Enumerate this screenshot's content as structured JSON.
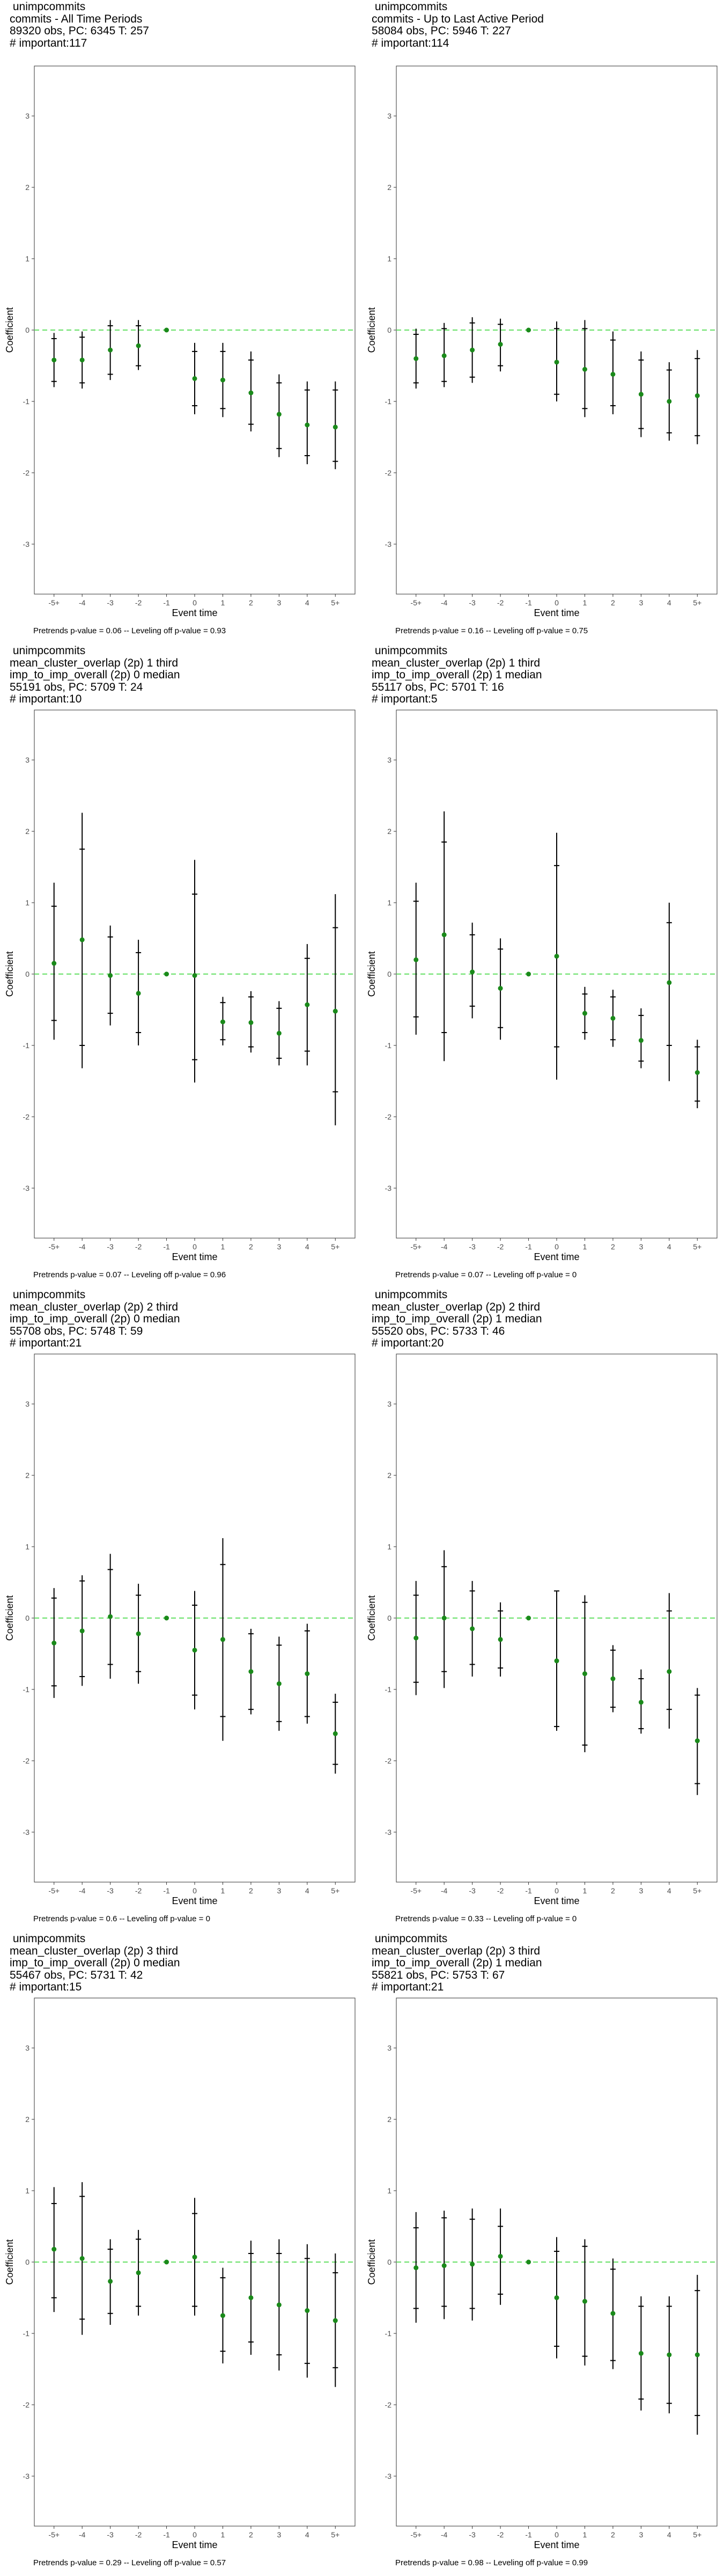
{
  "chart_data": [
    {
      "type": "scatter",
      "title_lines": [
        " unimpcommits",
        "commits - All Time Periods",
        "89320 obs, PC: 6345 T: 257",
        "# important:117"
      ],
      "xlabel": "Event time",
      "ylabel": "Coefficient",
      "categories": [
        "-5+",
        "-4",
        "-3",
        "-2",
        "-1",
        "0",
        "1",
        "2",
        "3",
        "4",
        "5+"
      ],
      "ylim": [
        -3.7,
        3.7
      ],
      "yticks": [
        -3,
        -2,
        -1,
        0,
        1,
        2,
        3
      ],
      "estimate": [
        -0.42,
        -0.42,
        -0.28,
        -0.22,
        0,
        -0.68,
        -0.7,
        -0.88,
        -1.18,
        -1.33,
        -1.36
      ],
      "ci95_low": [
        -0.8,
        -0.82,
        -0.7,
        -0.56,
        0,
        -1.18,
        -1.22,
        -1.42,
        -1.78,
        -1.88,
        -1.95
      ],
      "ci95_high": [
        -0.04,
        -0.02,
        0.14,
        0.14,
        0,
        -0.18,
        -0.18,
        -0.3,
        -0.62,
        -0.72,
        -0.72
      ],
      "ci90_low": [
        -0.72,
        -0.74,
        -0.62,
        -0.5,
        0,
        -1.06,
        -1.1,
        -1.32,
        -1.66,
        -1.76,
        -1.84
      ],
      "ci90_high": [
        -0.12,
        -0.1,
        0.06,
        0.06,
        0,
        -0.3,
        -0.3,
        -0.42,
        -0.74,
        -0.84,
        -0.84
      ],
      "reference_line": 0,
      "footnote": "Pretrends p-value = 0.06 -- Leveling off p-value = 0.93"
    },
    {
      "type": "scatter",
      "title_lines": [
        " unimpcommits",
        "commits - Up to Last Active Period",
        "58084 obs, PC: 5946 T: 227",
        "# important:114"
      ],
      "xlabel": "Event time",
      "ylabel": "Coefficient",
      "categories": [
        "-5+",
        "-4",
        "-3",
        "-2",
        "-1",
        "0",
        "1",
        "2",
        "3",
        "4",
        "5+"
      ],
      "ylim": [
        -3.7,
        3.7
      ],
      "yticks": [
        -3,
        -2,
        -1,
        0,
        1,
        2,
        3
      ],
      "estimate": [
        -0.4,
        -0.36,
        -0.28,
        -0.2,
        0,
        -0.45,
        -0.55,
        -0.62,
        -0.9,
        -1.0,
        -0.92
      ],
      "ci95_low": [
        -0.82,
        -0.8,
        -0.74,
        -0.58,
        0,
        -1.0,
        -1.22,
        -1.18,
        -1.5,
        -1.55,
        -1.6
      ],
      "ci95_high": [
        0.02,
        0.1,
        0.18,
        0.16,
        0,
        0.12,
        0.14,
        -0.02,
        -0.3,
        -0.45,
        -0.28
      ],
      "ci90_low": [
        -0.74,
        -0.72,
        -0.66,
        -0.5,
        0,
        -0.9,
        -1.1,
        -1.06,
        -1.38,
        -1.44,
        -1.48
      ],
      "ci90_high": [
        -0.06,
        0.02,
        0.1,
        0.08,
        0,
        0.02,
        0.02,
        -0.14,
        -0.42,
        -0.56,
        -0.4
      ],
      "reference_line": 0,
      "footnote": "Pretrends p-value = 0.16 -- Leveling off p-value = 0.75"
    },
    {
      "type": "scatter",
      "title_lines": [
        " unimpcommits",
        "mean_cluster_overlap (2p) 1 third",
        "imp_to_imp_overall (2p) 0 median",
        "55191 obs, PC: 5709 T: 24",
        "# important:10"
      ],
      "xlabel": "Event time",
      "ylabel": "Coefficient",
      "categories": [
        "-5+",
        "-4",
        "-3",
        "-2",
        "-1",
        "0",
        "1",
        "2",
        "3",
        "4",
        "5+"
      ],
      "ylim": [
        -3.7,
        3.7
      ],
      "yticks": [
        -3,
        -2,
        -1,
        0,
        1,
        2,
        3
      ],
      "estimate": [
        0.15,
        0.48,
        -0.02,
        -0.27,
        0,
        -0.02,
        -0.67,
        -0.68,
        -0.83,
        -0.43,
        -0.52
      ],
      "ci95_low": [
        -0.92,
        -1.32,
        -0.72,
        -1.0,
        0,
        -1.52,
        -1.0,
        -1.1,
        -1.28,
        -1.28,
        -2.12
      ],
      "ci95_high": [
        1.28,
        2.26,
        0.68,
        0.48,
        0,
        1.6,
        -0.32,
        -0.24,
        -0.38,
        0.42,
        1.12
      ],
      "ci90_low": [
        -0.65,
        -1.0,
        -0.55,
        -0.82,
        0,
        -1.2,
        -0.92,
        -1.02,
        -1.18,
        -1.08,
        -1.65
      ],
      "ci90_high": [
        0.95,
        1.75,
        0.52,
        0.3,
        0,
        1.12,
        -0.4,
        -0.32,
        -0.48,
        0.22,
        0.65
      ],
      "reference_line": 0,
      "footnote": "Pretrends p-value = 0.07 -- Leveling off p-value = 0.96"
    },
    {
      "type": "scatter",
      "title_lines": [
        " unimpcommits",
        "mean_cluster_overlap (2p) 1 third",
        "imp_to_imp_overall (2p) 1 median",
        "55117 obs, PC: 5701 T: 16",
        "# important:5"
      ],
      "xlabel": "Event time",
      "ylabel": "Coefficient",
      "categories": [
        "-5+",
        "-4",
        "-3",
        "-2",
        "-1",
        "0",
        "1",
        "2",
        "3",
        "4",
        "5+"
      ],
      "ylim": [
        -3.7,
        3.7
      ],
      "yticks": [
        -3,
        -2,
        -1,
        0,
        1,
        2,
        3
      ],
      "estimate": [
        0.2,
        0.55,
        0.03,
        -0.2,
        0,
        0.25,
        -0.55,
        -0.62,
        -0.93,
        -0.12,
        -1.38
      ],
      "ci95_low": [
        -0.85,
        -1.22,
        -0.62,
        -0.92,
        0,
        -1.48,
        -0.92,
        -1.02,
        -1.32,
        -1.5,
        -1.88
      ],
      "ci95_high": [
        1.28,
        2.28,
        0.72,
        0.5,
        0,
        1.98,
        -0.18,
        -0.22,
        -0.48,
        1.0,
        -0.92
      ],
      "ci90_low": [
        -0.6,
        -0.82,
        -0.45,
        -0.75,
        0,
        -1.02,
        -0.82,
        -0.92,
        -1.22,
        -1.0,
        -1.78
      ],
      "ci90_high": [
        1.02,
        1.85,
        0.55,
        0.35,
        0,
        1.52,
        -0.28,
        -0.32,
        -0.58,
        0.72,
        -1.02
      ],
      "reference_line": 0,
      "footnote": "Pretrends p-value = 0.07 -- Leveling off p-value = 0"
    },
    {
      "type": "scatter",
      "title_lines": [
        " unimpcommits",
        "mean_cluster_overlap (2p) 2 third",
        "imp_to_imp_overall (2p) 0 median",
        "55708 obs, PC: 5748 T: 59",
        "# important:21"
      ],
      "xlabel": "Event time",
      "ylabel": "Coefficient",
      "categories": [
        "-5+",
        "-4",
        "-3",
        "-2",
        "-1",
        "0",
        "1",
        "2",
        "3",
        "4",
        "5+"
      ],
      "ylim": [
        -3.7,
        3.7
      ],
      "yticks": [
        -3,
        -2,
        -1,
        0,
        1,
        2,
        3
      ],
      "estimate": [
        -0.35,
        -0.18,
        0.02,
        -0.22,
        0,
        -0.45,
        -0.3,
        -0.75,
        -0.92,
        -0.78,
        -1.62
      ],
      "ci95_low": [
        -1.12,
        -0.95,
        -0.85,
        -0.92,
        0,
        -1.28,
        -1.72,
        -1.35,
        -1.58,
        -1.48,
        -2.18
      ],
      "ci95_high": [
        0.42,
        0.6,
        0.9,
        0.48,
        0,
        0.38,
        1.12,
        -0.15,
        -0.26,
        -0.08,
        -1.06
      ],
      "ci90_low": [
        -0.95,
        -0.82,
        -0.65,
        -0.75,
        0,
        -1.08,
        -1.38,
        -1.28,
        -1.45,
        -1.38,
        -2.05
      ],
      "ci90_high": [
        0.28,
        0.52,
        0.68,
        0.32,
        0,
        0.18,
        0.75,
        -0.22,
        -0.38,
        -0.18,
        -1.18
      ],
      "reference_line": 0,
      "footnote": "Pretrends p-value = 0.6 -- Leveling off p-value = 0"
    },
    {
      "type": "scatter",
      "title_lines": [
        " unimpcommits",
        "mean_cluster_overlap (2p) 2 third",
        "imp_to_imp_overall (2p) 1 median",
        "55520 obs, PC: 5733 T: 46",
        "# important:20"
      ],
      "xlabel": "Event time",
      "ylabel": "Coefficient",
      "categories": [
        "-5+",
        "-4",
        "-3",
        "-2",
        "-1",
        "0",
        "1",
        "2",
        "3",
        "4",
        "5+"
      ],
      "ylim": [
        -3.7,
        3.7
      ],
      "yticks": [
        -3,
        -2,
        -1,
        0,
        1,
        2,
        3
      ],
      "estimate": [
        -0.28,
        0.0,
        -0.15,
        -0.3,
        0,
        -0.6,
        -0.78,
        -0.85,
        -1.18,
        -0.75,
        -1.72
      ],
      "ci95_low": [
        -1.08,
        -0.98,
        -0.82,
        -0.82,
        0,
        -1.58,
        -1.88,
        -1.32,
        -1.62,
        -1.55,
        -2.48
      ],
      "ci95_high": [
        0.52,
        0.95,
        0.52,
        0.22,
        0,
        0.38,
        0.32,
        -0.38,
        -0.72,
        0.35,
        -0.98
      ],
      "ci90_low": [
        -0.9,
        -0.75,
        -0.65,
        -0.7,
        0,
        -1.52,
        -1.78,
        -1.25,
        -1.55,
        -1.28,
        -2.32
      ],
      "ci90_high": [
        0.32,
        0.72,
        0.38,
        0.1,
        0,
        0.38,
        0.22,
        -0.45,
        -0.85,
        0.1,
        -1.08
      ],
      "reference_line": 0,
      "footnote": "Pretrends p-value = 0.33 -- Leveling off p-value = 0"
    },
    {
      "type": "scatter",
      "title_lines": [
        " unimpcommits",
        "mean_cluster_overlap (2p) 3 third",
        "imp_to_imp_overall (2p) 0 median",
        "55467 obs, PC: 5731 T: 42",
        "# important:15"
      ],
      "xlabel": "Event time",
      "ylabel": "Coefficient",
      "categories": [
        "-5+",
        "-4",
        "-3",
        "-2",
        "-1",
        "0",
        "1",
        "2",
        "3",
        "4",
        "5+"
      ],
      "ylim": [
        -3.7,
        3.7
      ],
      "yticks": [
        -3,
        -2,
        -1,
        0,
        1,
        2,
        3
      ],
      "estimate": [
        0.18,
        0.05,
        -0.27,
        -0.15,
        0,
        0.07,
        -0.75,
        -0.5,
        -0.6,
        -0.68,
        -0.82
      ],
      "ci95_low": [
        -0.7,
        -1.02,
        -0.88,
        -0.75,
        0,
        -0.75,
        -1.42,
        -1.3,
        -1.52,
        -1.62,
        -1.75
      ],
      "ci95_high": [
        1.05,
        1.12,
        0.32,
        0.45,
        0,
        0.9,
        -0.08,
        0.3,
        0.32,
        0.25,
        0.12
      ],
      "ci90_low": [
        -0.5,
        -0.8,
        -0.72,
        -0.62,
        0,
        -0.62,
        -1.25,
        -1.12,
        -1.3,
        -1.42,
        -1.48
      ],
      "ci90_high": [
        0.82,
        0.92,
        0.18,
        0.32,
        0,
        0.68,
        -0.22,
        0.12,
        0.12,
        0.05,
        -0.15
      ],
      "reference_line": 0,
      "footnote": "Pretrends p-value = 0.29 -- Leveling off p-value = 0.57"
    },
    {
      "type": "scatter",
      "title_lines": [
        " unimpcommits",
        "mean_cluster_overlap (2p) 3 third",
        "imp_to_imp_overall (2p) 1 median",
        "55821 obs, PC: 5753 T: 67",
        "# important:21"
      ],
      "xlabel": "Event time",
      "ylabel": "Coefficient",
      "categories": [
        "-5+",
        "-4",
        "-3",
        "-2",
        "-1",
        "0",
        "1",
        "2",
        "3",
        "4",
        "5+"
      ],
      "ylim": [
        -3.7,
        3.7
      ],
      "yticks": [
        -3,
        -2,
        -1,
        0,
        1,
        2,
        3
      ],
      "estimate": [
        -0.08,
        -0.05,
        -0.03,
        0.08,
        0,
        -0.5,
        -0.55,
        -0.72,
        -1.28,
        -1.3,
        -1.3
      ],
      "ci95_low": [
        -0.85,
        -0.8,
        -0.82,
        -0.6,
        0,
        -1.35,
        -1.45,
        -1.5,
        -2.08,
        -2.12,
        -2.42
      ],
      "ci95_high": [
        0.7,
        0.72,
        0.75,
        0.75,
        0,
        0.35,
        0.32,
        0.05,
        -0.48,
        -0.48,
        -0.18
      ],
      "ci90_low": [
        -0.65,
        -0.62,
        -0.65,
        -0.45,
        0,
        -1.18,
        -1.32,
        -1.38,
        -1.92,
        -1.98,
        -2.15
      ],
      "ci90_high": [
        0.48,
        0.62,
        0.6,
        0.5,
        0,
        0.15,
        0.22,
        -0.1,
        -0.62,
        -0.62,
        -0.4
      ],
      "reference_line": 0,
      "footnote": "Pretrends p-value = 0.98 -- Leveling off p-value = 0.99"
    }
  ],
  "colors": {
    "estimate_point": "#1a8a1a",
    "reference_line": "#66e066",
    "error_bar": "#000000",
    "axis_text": "#4d4d4d",
    "frame": "#333333"
  }
}
